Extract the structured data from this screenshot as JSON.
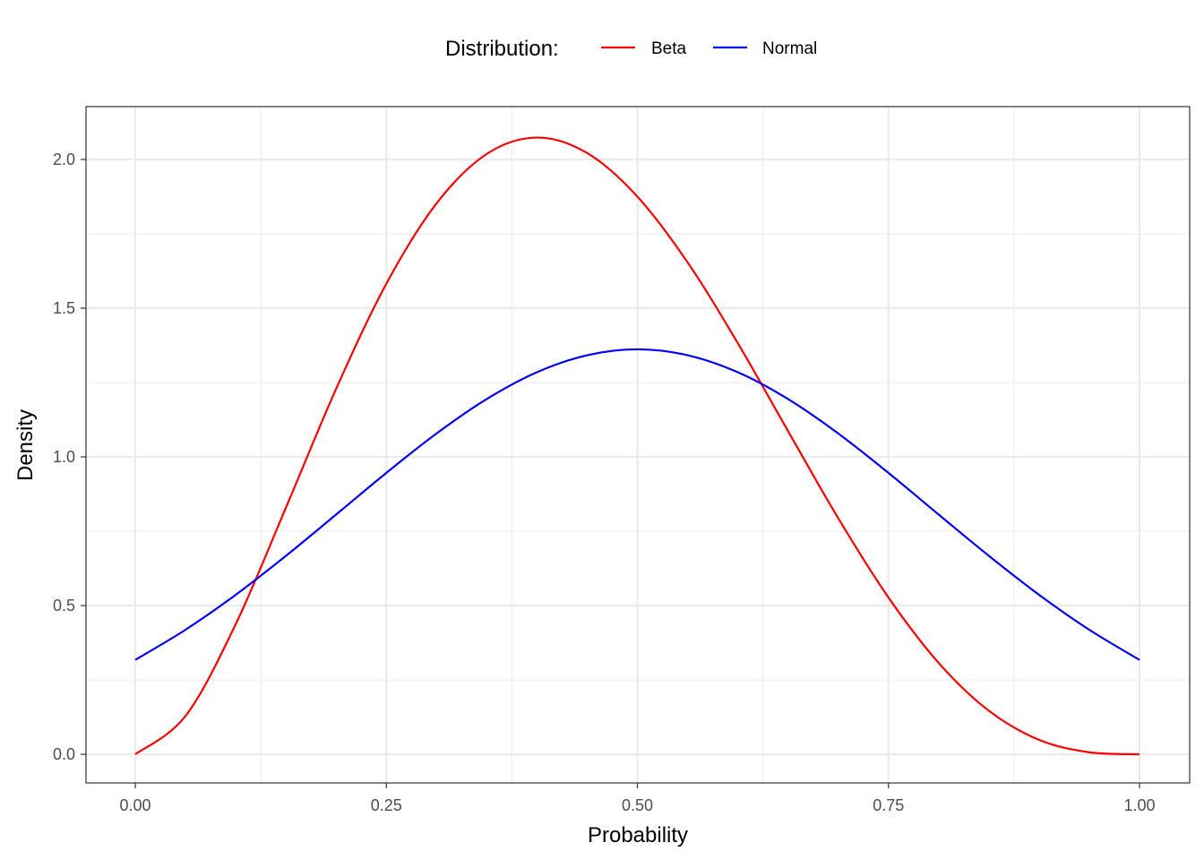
{
  "chart_data": {
    "type": "line",
    "xlabel": "Probability",
    "ylabel": "Density",
    "xlim": [
      -0.05,
      1.05
    ],
    "ylim": [
      -0.1,
      2.17
    ],
    "x_ticks": [
      "0.00",
      "0.25",
      "0.50",
      "0.75",
      "1.00"
    ],
    "y_ticks": [
      "0.0",
      "0.5",
      "1.0",
      "1.5",
      "2.0"
    ],
    "grid": true,
    "legend": {
      "title": "Distribution:",
      "position": "top"
    },
    "x": [
      0,
      0.05,
      0.1,
      0.15,
      0.2,
      0.25,
      0.3,
      0.35,
      0.4,
      0.45,
      0.5,
      0.55,
      0.6,
      0.65,
      0.7,
      0.75,
      0.8,
      0.85,
      0.9,
      0.95,
      1
    ],
    "series": [
      {
        "name": "Beta",
        "color": "#ff0000",
        "values": [
          0,
          0.1286,
          0.4374,
          0.8291,
          1.2288,
          1.582,
          1.8522,
          2.0185,
          2.0736,
          2.0215,
          1.875,
          1.6539,
          1.3824,
          1.0869,
          0.7938,
          0.5273,
          0.3072,
          0.1463,
          0.0486,
          0.0068,
          0
        ]
      },
      {
        "name": "Normal",
        "color": "#0000ff",
        "values": [
          0.3175,
          0.4187,
          0.5362,
          0.6672,
          0.8061,
          0.9462,
          1.0787,
          1.1944,
          1.2845,
          1.3418,
          1.3616,
          1.3418,
          1.2845,
          1.1944,
          1.0787,
          0.9462,
          0.8061,
          0.6672,
          0.5362,
          0.4187,
          0.3175
        ]
      }
    ]
  }
}
